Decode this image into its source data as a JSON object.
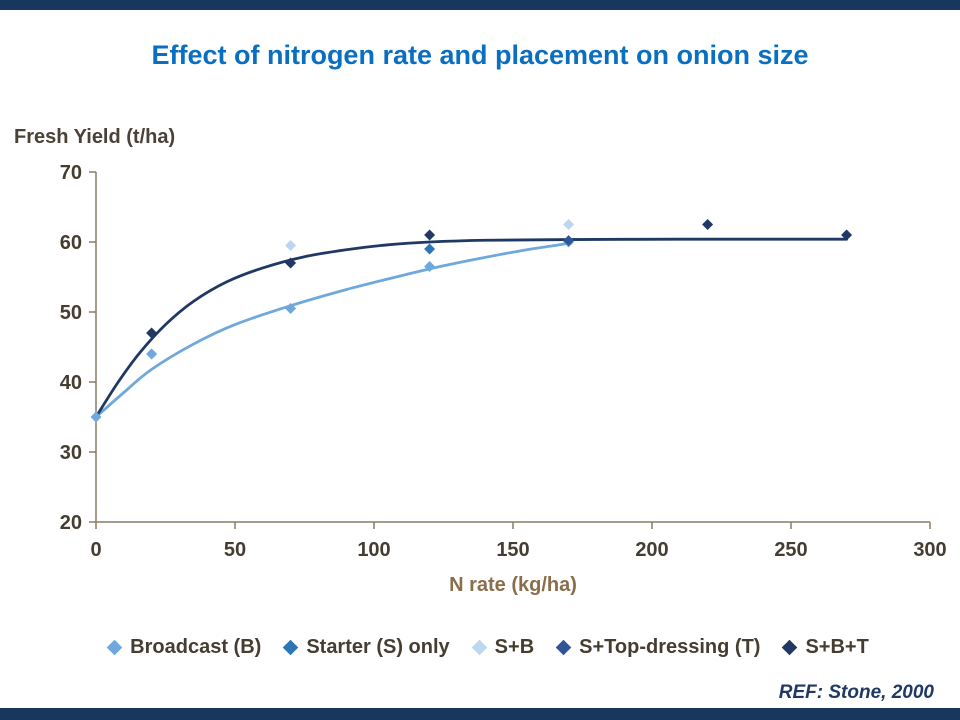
{
  "page": {
    "ref": "REF: Stone, 2000"
  },
  "colors": {
    "title_blue": "#0B6FC1",
    "accent_bar_navy": "#17375E",
    "axis_text_dark": "#453D32",
    "x_label_brown": "#8A6D4A",
    "ref_navy": "#1F3864"
  },
  "chart_data": {
    "type": "scatter",
    "title": "Effect of nitrogen rate and placement on onion size",
    "xlabel": "N rate (kg/ha)",
    "ylabel": "Fresh Yield (t/ha)",
    "xlim": [
      0,
      300
    ],
    "ylim": [
      20,
      70
    ],
    "xticks": [
      0,
      50,
      100,
      150,
      200,
      250,
      300
    ],
    "yticks": [
      20,
      30,
      40,
      50,
      60,
      70
    ],
    "grid": false,
    "legend_position": "bottom",
    "axis_color": "#8A7A67",
    "series": [
      {
        "id": "broadcast",
        "name": "Broadcast (B)",
        "color": "#6FA8DC",
        "points": [
          [
            0,
            35
          ],
          [
            20,
            44
          ],
          [
            70,
            50.5
          ],
          [
            120,
            56.5
          ],
          [
            170,
            60
          ]
        ]
      },
      {
        "id": "starter",
        "name": "Starter (S) only",
        "color": "#2E75B6",
        "points": [
          [
            120,
            59
          ]
        ]
      },
      {
        "id": "s-b",
        "name": "S+B",
        "color": "#BDD7EE",
        "points": [
          [
            70,
            59.5
          ],
          [
            170,
            62.5
          ]
        ]
      },
      {
        "id": "s-topdressing",
        "name": "S+Top-dressing (T)",
        "color": "#2F5597",
        "points": [
          [
            170,
            60.2
          ]
        ]
      },
      {
        "id": "s-b-t",
        "name": "S+B+T",
        "color": "#1F3864",
        "points": [
          [
            20,
            47
          ],
          [
            70,
            57
          ],
          [
            120,
            61
          ],
          [
            220,
            62.5
          ],
          [
            270,
            61
          ]
        ]
      }
    ],
    "curves": [
      {
        "id": "broadcast-fit",
        "color": "#6FA8DC",
        "points": [
          [
            0,
            35
          ],
          [
            10,
            38.5
          ],
          [
            20,
            41.8
          ],
          [
            35,
            45.4
          ],
          [
            50,
            48.2
          ],
          [
            70,
            50.9
          ],
          [
            90,
            53.2
          ],
          [
            110,
            55.2
          ],
          [
            125,
            56.6
          ],
          [
            140,
            57.8
          ],
          [
            155,
            58.9
          ],
          [
            170,
            59.8
          ]
        ]
      },
      {
        "id": "s-b-t-fit",
        "color": "#1F3864",
        "points": [
          [
            0,
            35
          ],
          [
            8,
            40
          ],
          [
            16,
            44.3
          ],
          [
            25,
            48.2
          ],
          [
            35,
            51.5
          ],
          [
            47,
            54.3
          ],
          [
            60,
            56.3
          ],
          [
            75,
            57.9
          ],
          [
            90,
            58.9
          ],
          [
            105,
            59.6
          ],
          [
            120,
            60.0
          ],
          [
            140,
            60.25
          ],
          [
            170,
            60.35
          ],
          [
            210,
            60.4
          ],
          [
            240,
            60.4
          ],
          [
            270,
            60.4
          ]
        ]
      }
    ]
  }
}
